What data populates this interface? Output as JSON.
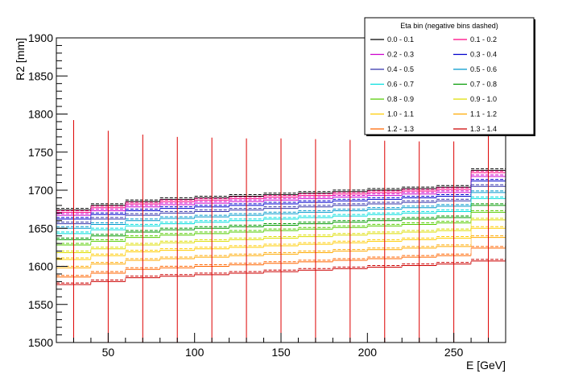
{
  "chart_data": {
    "type": "line",
    "xlabel": "E [GeV]",
    "ylabel": "R2 [mm]",
    "xlim": [
      20,
      280
    ],
    "ylim": [
      1500,
      1900
    ],
    "x_ticks": [
      50,
      100,
      150,
      200,
      250
    ],
    "y_ticks": [
      1500,
      1550,
      1600,
      1650,
      1700,
      1750,
      1800,
      1850,
      1900
    ],
    "grid": false,
    "legend": {
      "title": "Eta bin (negative bins dashed)",
      "placement": "top-right",
      "columns": 2
    },
    "bin_edges": [
      20,
      40,
      60,
      80,
      100,
      120,
      140,
      160,
      180,
      200,
      220,
      240,
      260,
      280
    ],
    "bin_centers": [
      30,
      50,
      70,
      90,
      110,
      130,
      150,
      170,
      190,
      210,
      230,
      250,
      270
    ],
    "series": [
      {
        "name": "0.0  -  0.1",
        "color": "#000000",
        "values": [
          1674,
          1680,
          1685,
          1688,
          1690,
          1692,
          1694,
          1696,
          1698,
          1700,
          1702,
          1704,
          1726
        ],
        "error_top": [
          1792,
          1778,
          1773,
          1770,
          1769,
          1768,
          1768,
          1767,
          1766,
          1765,
          1764,
          1764,
          1775
        ]
      },
      {
        "name": "0.1  -  0.2",
        "color": "#ff0080",
        "values": [
          1671,
          1677,
          1682,
          1685,
          1687,
          1689,
          1691,
          1693,
          1695,
          1697,
          1699,
          1701,
          1723
        ]
      },
      {
        "name": "0.2  -  0.3",
        "color": "#cc00cc",
        "values": [
          1667,
          1673,
          1678,
          1681,
          1683,
          1685,
          1687,
          1689,
          1691,
          1693,
          1695,
          1697,
          1718
        ]
      },
      {
        "name": "0.3  -  0.4",
        "color": "#0000cc",
        "values": [
          1662,
          1668,
          1673,
          1676,
          1678,
          1680,
          1682,
          1684,
          1686,
          1688,
          1690,
          1692,
          1712
        ]
      },
      {
        "name": "0.4  -  0.5",
        "color": "#3333aa",
        "values": [
          1656,
          1662,
          1667,
          1670,
          1672,
          1674,
          1676,
          1678,
          1680,
          1682,
          1684,
          1686,
          1705
        ]
      },
      {
        "name": "0.5  -  0.6",
        "color": "#0099cc",
        "values": [
          1650,
          1655,
          1660,
          1663,
          1665,
          1667,
          1669,
          1671,
          1673,
          1675,
          1677,
          1679,
          1697
        ]
      },
      {
        "name": "0.6  -  0.7",
        "color": "#00dddd",
        "values": [
          1643,
          1648,
          1653,
          1656,
          1658,
          1660,
          1662,
          1664,
          1666,
          1668,
          1670,
          1672,
          1689
        ]
      },
      {
        "name": "0.7  -  0.8",
        "color": "#009900",
        "values": [
          1635,
          1640,
          1645,
          1648,
          1650,
          1652,
          1654,
          1656,
          1658,
          1660,
          1662,
          1664,
          1680
        ]
      },
      {
        "name": "0.8  -  0.9",
        "color": "#55cc00",
        "values": [
          1628,
          1633,
          1638,
          1641,
          1643,
          1645,
          1647,
          1649,
          1651,
          1653,
          1655,
          1657,
          1671
        ]
      },
      {
        "name": "0.9  -  1.0",
        "color": "#dddd00",
        "values": [
          1618,
          1623,
          1628,
          1631,
          1633,
          1635,
          1637,
          1639,
          1641,
          1643,
          1645,
          1647,
          1661
        ]
      },
      {
        "name": "1.0  -  1.1",
        "color": "#ffcc00",
        "values": [
          1609,
          1614,
          1619,
          1621,
          1623,
          1625,
          1627,
          1629,
          1631,
          1633,
          1635,
          1637,
          1650
        ]
      },
      {
        "name": "1.1  -  1.2",
        "color": "#ffaa00",
        "values": [
          1598,
          1603,
          1608,
          1610,
          1612,
          1614,
          1616,
          1618,
          1620,
          1622,
          1624,
          1626,
          1638
        ]
      },
      {
        "name": "1.2  -  1.3",
        "color": "#ff6600",
        "values": [
          1586,
          1591,
          1596,
          1598,
          1600,
          1602,
          1604,
          1606,
          1608,
          1610,
          1612,
          1614,
          1624
        ]
      },
      {
        "name": "1.3  -  1.4",
        "color": "#cc0000",
        "values": [
          1576,
          1580,
          1585,
          1587,
          1589,
          1591,
          1593,
          1595,
          1597,
          1599,
          1601,
          1603,
          1607
        ]
      }
    ]
  }
}
